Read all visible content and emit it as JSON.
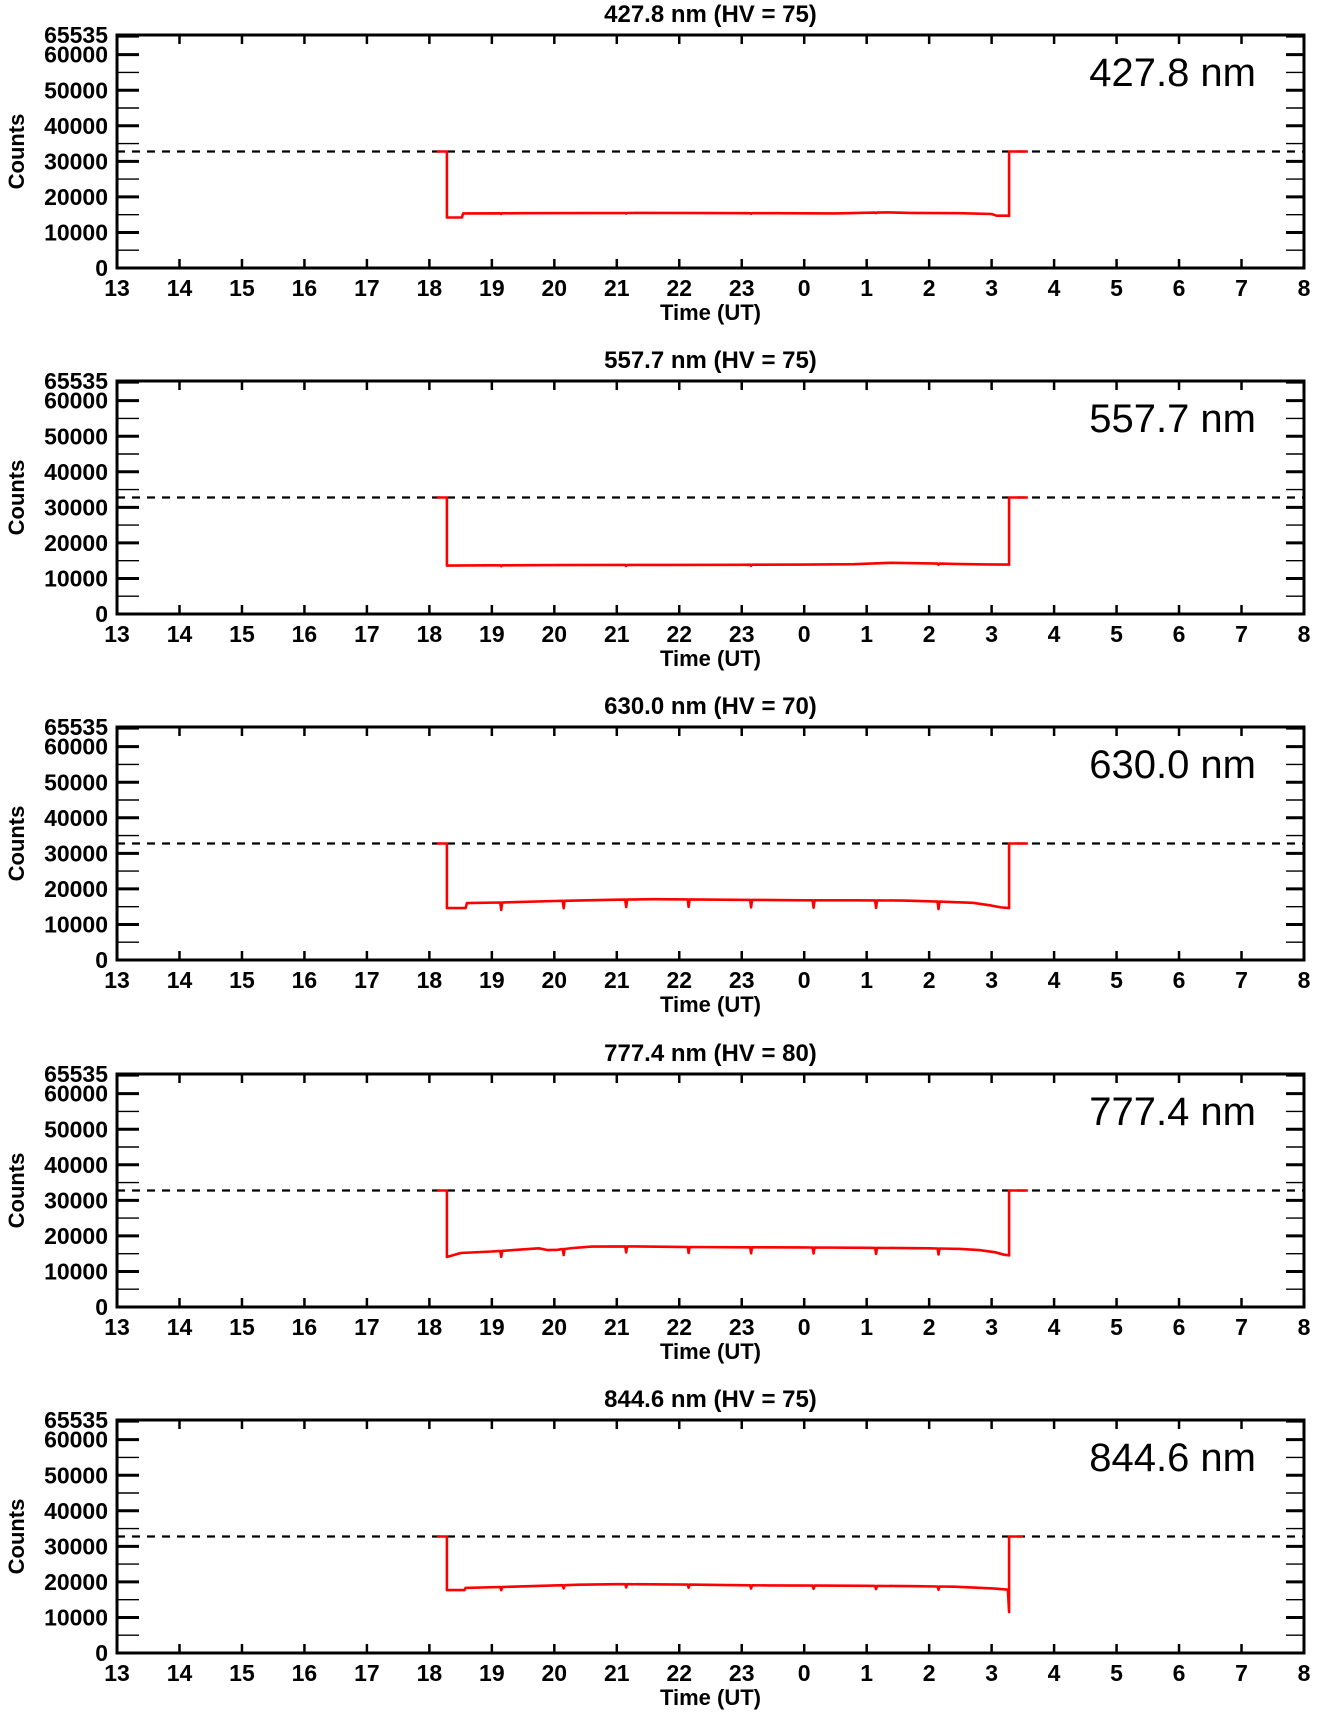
{
  "page": {
    "background": "#ffffff",
    "foreground": "#000000"
  },
  "axes_common": {
    "xlabel": "Time (UT)",
    "ylabel": "Counts",
    "x_tick_labels": [
      "13",
      "14",
      "15",
      "16",
      "17",
      "18",
      "19",
      "20",
      "21",
      "22",
      "23",
      "0",
      "1",
      "2",
      "3",
      "4",
      "5",
      "6",
      "7",
      "8"
    ],
    "x_start_hour": 13,
    "x_end_hour_continuous": 32,
    "x_note": "x axis is UT hours 13:00 through 08:00 next day; hours >= 24 are shown as 0-8",
    "ylim": [
      0,
      65535
    ],
    "y_major_ticks": [
      0,
      10000,
      20000,
      30000,
      40000,
      50000,
      60000,
      65535
    ],
    "y_tick_labels": [
      "0",
      "10000",
      "20000",
      "30000",
      "40000",
      "50000",
      "60000",
      "65535"
    ],
    "y_minor_ticks": [
      5000,
      15000,
      25000,
      35000,
      45000,
      55000,
      65000
    ],
    "threshold": 32767,
    "threshold_style": "dashed",
    "threshold_color": "#000000",
    "line_color": "#ff0000",
    "axis_color": "#000000",
    "grid": "off",
    "legend": "none"
  },
  "chart_data": [
    {
      "type": "line",
      "title": "427.8 nm (HV = 75)",
      "annotation": "427.8 nm",
      "wavelength_nm": 427.8,
      "hv": 75,
      "points": [
        [
          18.12,
          32767
        ],
        [
          18.28,
          32767
        ],
        [
          18.28,
          14200
        ],
        [
          18.52,
          14200
        ],
        [
          18.54,
          15350
        ],
        [
          19.5,
          15400
        ],
        [
          20.5,
          15450
        ],
        [
          21.5,
          15500
        ],
        [
          22.5,
          15450
        ],
        [
          23.5,
          15400
        ],
        [
          24.5,
          15350
        ],
        [
          25.3,
          15650
        ],
        [
          25.7,
          15500
        ],
        [
          26.5,
          15400
        ],
        [
          27.0,
          15200
        ],
        [
          27.08,
          14700
        ],
        [
          27.28,
          14700
        ],
        [
          27.28,
          32767
        ],
        [
          27.58,
          32767
        ]
      ],
      "dips": {
        "xs": [
          19.15,
          21.15,
          23.15,
          25.15
        ],
        "depth": 180
      }
    },
    {
      "type": "line",
      "title": "557.7 nm (HV = 75)",
      "annotation": "557.7 nm",
      "wavelength_nm": 557.7,
      "hv": 75,
      "points": [
        [
          18.12,
          32767
        ],
        [
          18.28,
          32767
        ],
        [
          18.28,
          13600
        ],
        [
          19.0,
          13700
        ],
        [
          20.0,
          13750
        ],
        [
          21.0,
          13800
        ],
        [
          22.0,
          13800
        ],
        [
          23.0,
          13850
        ],
        [
          24.0,
          13900
        ],
        [
          24.8,
          14000
        ],
        [
          25.4,
          14400
        ],
        [
          25.9,
          14250
        ],
        [
          26.4,
          14100
        ],
        [
          26.9,
          13950
        ],
        [
          27.28,
          13900
        ],
        [
          27.28,
          32767
        ],
        [
          27.58,
          32767
        ]
      ],
      "dips": {
        "xs": [
          19.15,
          21.15,
          23.15,
          26.15
        ],
        "depth": 300
      }
    },
    {
      "type": "line",
      "title": "630.0 nm (HV = 70)",
      "annotation": "630.0 nm",
      "wavelength_nm": 630.0,
      "hv": 70,
      "points": [
        [
          18.12,
          32767
        ],
        [
          18.28,
          32767
        ],
        [
          18.28,
          14600
        ],
        [
          18.58,
          14600
        ],
        [
          18.6,
          16000
        ],
        [
          19.2,
          16200
        ],
        [
          20.0,
          16600
        ],
        [
          20.8,
          16900
        ],
        [
          21.6,
          17100
        ],
        [
          22.4,
          17000
        ],
        [
          23.2,
          16900
        ],
        [
          24.0,
          16800
        ],
        [
          24.8,
          16800
        ],
        [
          25.6,
          16700
        ],
        [
          26.2,
          16400
        ],
        [
          26.7,
          16100
        ],
        [
          27.0,
          15300
        ],
        [
          27.15,
          14800
        ],
        [
          27.28,
          14600
        ],
        [
          27.28,
          32767
        ],
        [
          27.58,
          32767
        ]
      ],
      "dips": {
        "xs": [
          19.15,
          20.15,
          21.15,
          22.15,
          23.15,
          24.15,
          25.15,
          26.15
        ],
        "depth": 2100
      }
    },
    {
      "type": "line",
      "title": "777.4 nm (HV = 80)",
      "annotation": "777.4 nm",
      "wavelength_nm": 777.4,
      "hv": 80,
      "points": [
        [
          18.12,
          32767
        ],
        [
          18.28,
          32767
        ],
        [
          18.28,
          14100
        ],
        [
          18.35,
          14400
        ],
        [
          18.5,
          15200
        ],
        [
          19.0,
          15600
        ],
        [
          19.4,
          16100
        ],
        [
          19.75,
          16500
        ],
        [
          19.9,
          16000
        ],
        [
          20.05,
          16100
        ],
        [
          20.3,
          16600
        ],
        [
          20.6,
          17000
        ],
        [
          21.2,
          17050
        ],
        [
          22.0,
          16900
        ],
        [
          23.0,
          16800
        ],
        [
          24.0,
          16750
        ],
        [
          25.0,
          16650
        ],
        [
          26.0,
          16500
        ],
        [
          26.5,
          16350
        ],
        [
          26.8,
          16000
        ],
        [
          27.05,
          15400
        ],
        [
          27.2,
          14700
        ],
        [
          27.28,
          14500
        ],
        [
          27.28,
          32767
        ],
        [
          27.58,
          32767
        ]
      ],
      "dips": {
        "xs": [
          19.15,
          20.15,
          21.15,
          22.15,
          23.15,
          24.15,
          25.15,
          26.15
        ],
        "depth": 1700
      }
    },
    {
      "type": "line",
      "title": "844.6 nm (HV = 75)",
      "annotation": "844.6 nm",
      "wavelength_nm": 844.6,
      "hv": 75,
      "points": [
        [
          18.12,
          32767
        ],
        [
          18.28,
          32767
        ],
        [
          18.28,
          17700
        ],
        [
          18.56,
          17700
        ],
        [
          18.58,
          18300
        ],
        [
          19.2,
          18600
        ],
        [
          19.8,
          18900
        ],
        [
          20.4,
          19200
        ],
        [
          21.0,
          19350
        ],
        [
          21.8,
          19300
        ],
        [
          22.6,
          19150
        ],
        [
          23.4,
          19000
        ],
        [
          24.2,
          18950
        ],
        [
          25.0,
          18900
        ],
        [
          25.8,
          18800
        ],
        [
          26.4,
          18650
        ],
        [
          26.8,
          18350
        ],
        [
          27.05,
          18100
        ],
        [
          27.22,
          17900
        ],
        [
          27.26,
          17800
        ],
        [
          27.28,
          11500
        ],
        [
          27.28,
          32767
        ],
        [
          27.5,
          32767
        ]
      ],
      "dips": {
        "xs": [
          19.15,
          20.15,
          21.15,
          22.15,
          23.15,
          24.15,
          25.15,
          26.15
        ],
        "depth": 900
      }
    }
  ]
}
